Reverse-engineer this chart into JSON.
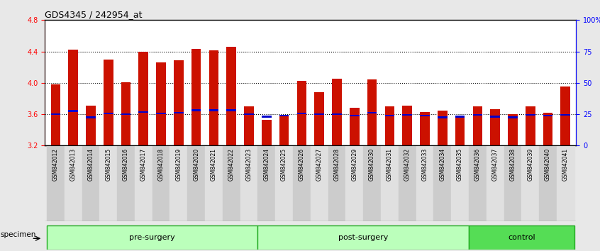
{
  "title": "GDS4345 / 242954_at",
  "samples": [
    "GSM842012",
    "GSM842013",
    "GSM842014",
    "GSM842015",
    "GSM842016",
    "GSM842017",
    "GSM842018",
    "GSM842019",
    "GSM842020",
    "GSM842021",
    "GSM842022",
    "GSM842023",
    "GSM842024",
    "GSM842025",
    "GSM842026",
    "GSM842027",
    "GSM842028",
    "GSM842029",
    "GSM842030",
    "GSM842031",
    "GSM842032",
    "GSM842033",
    "GSM842034",
    "GSM842035",
    "GSM842036",
    "GSM842037",
    "GSM842038",
    "GSM842039",
    "GSM842040",
    "GSM842041"
  ],
  "red_values": [
    3.98,
    4.42,
    3.71,
    4.3,
    4.01,
    4.4,
    4.26,
    4.29,
    4.43,
    4.41,
    4.46,
    3.7,
    3.53,
    3.58,
    4.03,
    3.88,
    4.05,
    3.68,
    4.04,
    3.7,
    3.71,
    3.63,
    3.65,
    3.58,
    3.7,
    3.66,
    3.6,
    3.7,
    3.62,
    3.95
  ],
  "blue_values": [
    3.6,
    3.64,
    3.56,
    3.61,
    3.6,
    3.63,
    3.61,
    3.62,
    3.65,
    3.65,
    3.65,
    3.6,
    3.57,
    3.58,
    3.61,
    3.6,
    3.6,
    3.58,
    3.62,
    3.58,
    3.59,
    3.58,
    3.56,
    3.57,
    3.59,
    3.57,
    3.56,
    3.59,
    3.58,
    3.59
  ],
  "groups": [
    {
      "label": "pre-surgery",
      "start": 0,
      "end": 11
    },
    {
      "label": "post-surgery",
      "start": 12,
      "end": 23
    },
    {
      "label": "control",
      "start": 24,
      "end": 29
    }
  ],
  "group_colors": [
    "#bbffbb",
    "#bbffbb",
    "#55dd55"
  ],
  "group_border_color": "#22aa22",
  "ylim_left": [
    3.2,
    4.8
  ],
  "ylim_right": [
    0,
    100
  ],
  "yticks_left": [
    3.2,
    3.6,
    4.0,
    4.4,
    4.8
  ],
  "yticks_right": [
    0,
    25,
    50,
    75,
    100
  ],
  "ytick_labels_right": [
    "0",
    "25",
    "50",
    "75",
    "100%"
  ],
  "grid_values": [
    3.6,
    4.0,
    4.4
  ],
  "bar_color": "#cc1100",
  "dot_color": "#0000cc",
  "bar_width": 0.55,
  "background_color": "#e8e8e8",
  "plot_bg_color": "#ffffff",
  "tick_bg_even": "#cccccc",
  "tick_bg_odd": "#e0e0e0"
}
